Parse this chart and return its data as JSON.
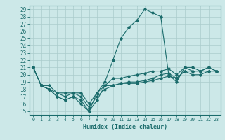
{
  "xlabel": "Humidex (Indice chaleur)",
  "bg_color": "#cce8e8",
  "line_color": "#1a6b6b",
  "grid_color": "#aacccc",
  "xlim": [
    -0.5,
    23.5
  ],
  "ylim": [
    14.5,
    29.5
  ],
  "xticks": [
    0,
    1,
    2,
    3,
    4,
    5,
    6,
    7,
    8,
    9,
    10,
    11,
    12,
    13,
    14,
    15,
    16,
    17,
    18,
    19,
    20,
    21,
    22,
    23
  ],
  "yticks": [
    15,
    16,
    17,
    18,
    19,
    20,
    21,
    22,
    23,
    24,
    25,
    26,
    27,
    28,
    29
  ],
  "series": [
    [
      21.0,
      18.5,
      18.0,
      17.0,
      16.5,
      17.0,
      16.5,
      15.0,
      17.5,
      19.0,
      22.0,
      25.0,
      26.5,
      27.5,
      29.0,
      28.5,
      28.0,
      20.0,
      19.0,
      21.0,
      20.5,
      20.5,
      20.5,
      20.5
    ],
    [
      21.0,
      18.5,
      18.0,
      17.0,
      16.5,
      17.0,
      16.0,
      15.0,
      16.5,
      18.5,
      18.5,
      18.8,
      18.8,
      18.8,
      19.0,
      19.2,
      19.5,
      19.8,
      19.5,
      20.5,
      20.0,
      20.0,
      20.5,
      20.5
    ],
    [
      21.0,
      18.5,
      18.0,
      17.5,
      17.0,
      17.5,
      17.0,
      15.5,
      17.0,
      18.0,
      18.5,
      18.8,
      19.0,
      19.0,
      19.2,
      19.5,
      20.0,
      20.2,
      19.5,
      20.5,
      20.5,
      20.5,
      21.0,
      20.5
    ],
    [
      21.0,
      18.5,
      18.5,
      17.5,
      17.5,
      17.5,
      17.5,
      16.0,
      17.5,
      18.5,
      19.5,
      19.5,
      19.8,
      20.0,
      20.2,
      20.5,
      20.5,
      20.8,
      20.0,
      21.0,
      21.0,
      20.5,
      21.0,
      20.5
    ]
  ]
}
